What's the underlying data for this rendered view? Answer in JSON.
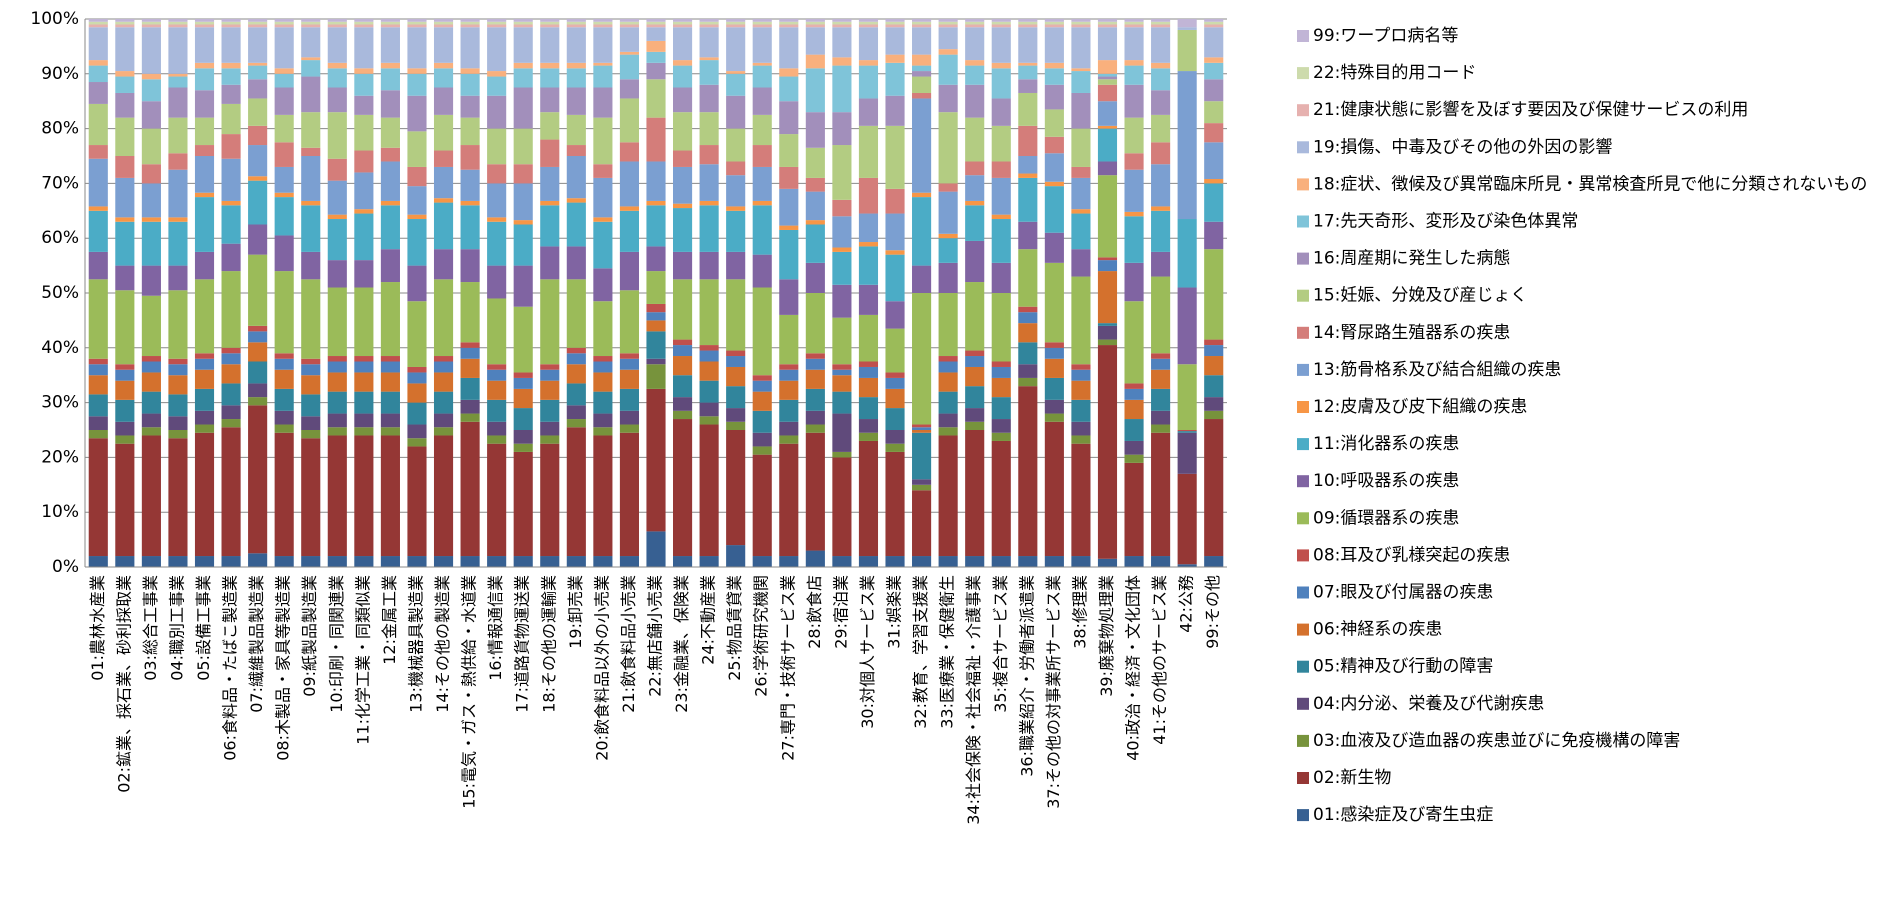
{
  "chart_data": {
    "type": "stacked_bar",
    "categories": [
      "01:農林水産業",
      "02:鉱業、採石業、砂利採取業",
      "03:総合工事業",
      "04:職別工事業",
      "05:設備工事業",
      "06:食料品・たばこ製造業",
      "07:繊維製品製造業",
      "08:木製品・家具等製造業",
      "09:紙製品製造業",
      "10:印刷・同関連業",
      "11:化学工業・同類似業",
      "12:金属工業",
      "13:機械器具製造業",
      "14:その他の製造業",
      "15:電気・ガス・熱供給・水道業",
      "16:情報通信業",
      "17:道路貨物運送業",
      "18:その他の運輸業",
      "19:卸売業",
      "20:飲食料品以外の小売業",
      "21:飲食料品小売業",
      "22:無店舗小売業",
      "23:金融業、保険業",
      "24:不動産業",
      "25:物品賃貸業",
      "26:学術研究機関",
      "27:専門・技術サービス業",
      "28:飲食店",
      "29:宿泊業",
      "30:対個人サービス業",
      "31:娯楽業",
      "32:教育、学習支援業",
      "33:医療業・保健衛生",
      "34:社会保険・社会福祉・介護事業",
      "35:複合サービス業",
      "36:職業紹介・労働者派遣業",
      "37:その他の対事業所サービス業",
      "38:修理業",
      "39:廃棄物処理業",
      "40:政治・経済・文化団体",
      "41:その他のサービス業",
      "42:公務",
      "99:その他"
    ],
    "ylim": [
      0,
      100
    ],
    "yticks": [
      {
        "value": 0,
        "label": "0%"
      },
      {
        "value": 10,
        "label": "10%"
      },
      {
        "value": 20,
        "label": "20%"
      },
      {
        "value": 30,
        "label": "30%"
      },
      {
        "value": 40,
        "label": "40%"
      },
      {
        "value": 50,
        "label": "50%"
      },
      {
        "value": 60,
        "label": "60%"
      },
      {
        "value": 70,
        "label": "70%"
      },
      {
        "value": 80,
        "label": "80%"
      },
      {
        "value": 90,
        "label": "90%"
      },
      {
        "value": 100,
        "label": "100%"
      }
    ],
    "grid": true,
    "legend": "right",
    "series": [
      {
        "name": "01:感染症及び寄生虫症",
        "color": "#376092",
        "values": [
          2,
          2,
          2,
          2,
          2,
          2,
          2.5,
          2,
          2,
          2,
          2,
          2,
          2,
          2,
          2,
          2,
          2,
          2,
          2,
          2,
          2,
          6.5,
          2,
          2,
          4,
          2,
          2,
          3,
          2,
          2,
          2,
          2,
          2,
          2,
          2,
          2,
          2,
          2,
          1.5,
          2,
          2,
          0.5,
          2
        ]
      },
      {
        "name": "02:新生物",
        "color": "#953735",
        "values": [
          21.5,
          20.5,
          22,
          21.5,
          22.5,
          23.5,
          27,
          22.5,
          21.5,
          22,
          22,
          22,
          20,
          22,
          24.5,
          20.5,
          19,
          20.5,
          23.5,
          22,
          22.5,
          26,
          25,
          24,
          21,
          18.5,
          20.5,
          21.5,
          18,
          21,
          19,
          12,
          22,
          23,
          21,
          31,
          24.5,
          20.5,
          39,
          17,
          22.5,
          16.5,
          25
        ]
      },
      {
        "name": "03:血液及び造血器の疾患並びに免疫機構の障害",
        "color": "#77933c",
        "values": [
          1.5,
          1.5,
          1.5,
          1.5,
          1.5,
          1.5,
          1.5,
          1.5,
          1.5,
          1.5,
          1.5,
          1.5,
          1.5,
          1.5,
          1.5,
          1.5,
          1.5,
          1.5,
          1.5,
          1.5,
          1.5,
          4.5,
          1.5,
          1.5,
          1.5,
          1.5,
          1.5,
          1.5,
          1,
          1.5,
          1.5,
          1,
          1.5,
          1.5,
          1.5,
          1.5,
          1.5,
          1.5,
          1,
          1.5,
          1.5,
          0,
          1.5
        ]
      },
      {
        "name": "04:内分泌、栄養及び代謝疾患",
        "color": "#604a7b",
        "values": [
          2.5,
          2.5,
          2.5,
          2.5,
          2.5,
          2.5,
          2.5,
          2.5,
          2.5,
          2.5,
          2.5,
          2.5,
          2.5,
          2.5,
          2.5,
          2.5,
          2.5,
          2.5,
          2.5,
          2.5,
          2.5,
          1,
          2.5,
          2.5,
          2.5,
          2.5,
          2.5,
          2.5,
          7,
          2.5,
          2.5,
          1,
          2.5,
          2.5,
          2.5,
          2.5,
          2.5,
          2.5,
          2.5,
          2.5,
          2.5,
          7.5,
          2.5
        ]
      },
      {
        "name": "05:精神及び行動の障害",
        "color": "#31859c",
        "values": [
          4,
          4,
          4,
          4,
          4,
          4,
          4,
          4,
          4,
          4,
          4,
          4,
          4,
          4,
          4,
          4,
          4,
          4,
          4,
          4,
          4,
          5,
          4,
          4,
          4,
          4,
          4,
          4,
          4,
          4,
          4,
          8.5,
          4,
          4,
          4,
          4,
          4,
          4,
          0.5,
          4,
          4,
          0.3,
          4
        ]
      },
      {
        "name": "06:神経系の疾患",
        "color": "#d4712d",
        "values": [
          3.5,
          3.5,
          3.5,
          3.5,
          3.5,
          3.5,
          3.5,
          3.5,
          3.5,
          3.5,
          3.5,
          3.5,
          3.5,
          3.5,
          3.5,
          3.5,
          3.5,
          3.5,
          3.5,
          3.5,
          3.5,
          2,
          3.5,
          3.5,
          3.5,
          3.5,
          3.5,
          3.5,
          3,
          3.5,
          3.5,
          0.5,
          3.5,
          3.5,
          3.5,
          3.5,
          3.5,
          3.5,
          9.5,
          3.5,
          3.5,
          0,
          3.5
        ]
      },
      {
        "name": "07:眼及び付属器の疾患",
        "color": "#4f81bd",
        "values": [
          2,
          2,
          2,
          2,
          2,
          2,
          2,
          2,
          2,
          2,
          2,
          2,
          2,
          2,
          2,
          2,
          2,
          2,
          2,
          2,
          2,
          1.5,
          2,
          2,
          2,
          2,
          2,
          2,
          1,
          2,
          2,
          0.5,
          2,
          2,
          2,
          2,
          2,
          2,
          2,
          2,
          2,
          0,
          2
        ]
      },
      {
        "name": "08:耳及び乳様突起の疾患",
        "color": "#c0504d",
        "values": [
          1,
          1,
          1,
          1,
          1,
          1,
          1,
          1,
          1,
          1,
          1,
          1,
          1,
          1,
          1,
          1,
          1,
          1,
          1,
          1,
          1,
          1.5,
          1,
          1,
          1,
          1,
          1,
          1,
          1,
          1,
          1,
          0.5,
          1,
          1,
          1,
          1,
          1,
          1,
          0.5,
          1,
          1,
          0.2,
          1
        ]
      },
      {
        "name": "09:循環器系の疾患",
        "color": "#9bbb59",
        "values": [
          14.5,
          13.5,
          11,
          12.5,
          13.5,
          14,
          13,
          15,
          14.5,
          12.5,
          12.5,
          13.5,
          12,
          14,
          11,
          12,
          12,
          15.5,
          12.5,
          10,
          11.5,
          6,
          11,
          12,
          13,
          16,
          9,
          11,
          8.5,
          8.5,
          8,
          24,
          11.5,
          12.5,
          12.5,
          10.5,
          14.5,
          16,
          15,
          15,
          14,
          12,
          16.5
        ]
      },
      {
        "name": "10:呼吸器系の疾患",
        "color": "#8064a2",
        "values": [
          5,
          4.5,
          5.5,
          4.5,
          5,
          5,
          5.5,
          6.5,
          5,
          5,
          5,
          6,
          6.5,
          5.5,
          6,
          6,
          7.5,
          6,
          6,
          6,
          7,
          4.5,
          5,
          5,
          5,
          6,
          6.5,
          5.5,
          6,
          5.5,
          5,
          5,
          5.5,
          7.5,
          5.5,
          5,
          5.5,
          5,
          2.5,
          7,
          4.5,
          14,
          5
        ]
      },
      {
        "name": "11:消化器系の疾患",
        "color": "#4bacc6",
        "values": [
          7.5,
          8,
          8,
          8,
          10,
          7,
          8,
          7,
          8.5,
          7.5,
          8.5,
          8,
          8.5,
          8.5,
          8,
          8,
          7.5,
          7.5,
          8,
          8.5,
          7.5,
          7.5,
          8,
          8.5,
          7.5,
          9,
          9,
          7,
          6,
          7,
          8.5,
          12.5,
          4.5,
          6.5,
          8,
          8,
          8.5,
          6.5,
          6,
          8.5,
          7.5,
          12.5,
          7
        ]
      },
      {
        "name": "12:皮膚及び皮下組織の疾患",
        "color": "#f79646",
        "values": [
          0.8,
          0.8,
          0.8,
          0.8,
          0.8,
          0.8,
          0.8,
          0.8,
          0.8,
          0.8,
          0.8,
          0.8,
          0.8,
          0.8,
          0.8,
          0.8,
          0.8,
          0.8,
          0.8,
          0.8,
          0.8,
          0.8,
          0.8,
          0.8,
          0.8,
          0.8,
          0.8,
          0.8,
          0.8,
          0.8,
          0.8,
          0.8,
          0.8,
          0.8,
          0.8,
          0.8,
          0.8,
          0.8,
          0.5,
          0.8,
          0.8,
          0,
          0.8
        ]
      },
      {
        "name": "13:筋骨格系及び結合組織の疾患",
        "color": "#7b9fd1",
        "values": [
          8.7,
          7.2,
          6.2,
          8.7,
          6.7,
          7.7,
          5.7,
          4.7,
          8.2,
          6.2,
          6.7,
          7.2,
          5.2,
          5.7,
          5.7,
          6.2,
          6.7,
          6.2,
          7.7,
          7.2,
          8.2,
          7.2,
          6.7,
          6.7,
          5.7,
          6.2,
          6.7,
          5.2,
          5.7,
          5.2,
          6.7,
          17.2,
          7.7,
          4.7,
          6.7,
          3.2,
          5.2,
          5.7,
          4.5,
          7.7,
          7.7,
          27,
          6.7
        ]
      },
      {
        "name": "14:腎尿路生殖器系の疾患",
        "color": "#d47d7a",
        "values": [
          2.5,
          4,
          3.5,
          3,
          2,
          4.5,
          3.5,
          4.5,
          1.5,
          4,
          4,
          2.5,
          3.5,
          3,
          4.5,
          3.5,
          3.5,
          5,
          2,
          2.5,
          3.5,
          8,
          3,
          3.5,
          2.5,
          4,
          4,
          2.5,
          3,
          6.5,
          4.5,
          1,
          1.5,
          2.5,
          3,
          5.5,
          3,
          2,
          3,
          3,
          4,
          0,
          3.5
        ]
      },
      {
        "name": "15:妊娠、分娩及び産じょく",
        "color": "#b3cc82",
        "values": [
          7.5,
          7,
          6.5,
          6.5,
          5,
          5.5,
          5,
          5,
          6.5,
          8.5,
          6.5,
          5.5,
          6.5,
          6.5,
          5,
          6.5,
          6.5,
          5,
          5.5,
          8.5,
          8,
          7,
          7,
          6,
          6,
          5.5,
          6,
          5.5,
          10,
          9.5,
          11.5,
          3,
          13,
          8,
          6.5,
          6,
          5,
          7,
          1,
          6.5,
          5,
          7.5,
          4
        ]
      },
      {
        "name": "16:周産期に発生した病態",
        "color": "#a28fbb",
        "values": [
          4,
          4.5,
          5,
          5.5,
          5,
          3.5,
          3.5,
          5,
          6.5,
          4.5,
          3.5,
          5,
          6.5,
          5,
          4,
          6,
          7.5,
          4.5,
          5,
          5.5,
          3.5,
          3,
          4.5,
          5,
          6,
          5,
          6,
          6.5,
          6,
          5,
          5.5,
          1,
          5,
          6,
          5,
          2.5,
          4.5,
          6.5,
          0.5,
          6,
          4.5,
          0,
          4
        ]
      },
      {
        "name": "17:先天奇形、変形及び染色体異常",
        "color": "#7fc4d9",
        "values": [
          3,
          3,
          4,
          2,
          4,
          3,
          2.5,
          2.5,
          3,
          3.5,
          4,
          4,
          4,
          3.5,
          4,
          3.5,
          3.5,
          3.5,
          3.5,
          4,
          4.5,
          2,
          4,
          4.5,
          4,
          4,
          4.5,
          8,
          8.5,
          6,
          6,
          1,
          5.5,
          3.5,
          5.5,
          2.5,
          3,
          4,
          0.5,
          3.5,
          4,
          0,
          3
        ]
      },
      {
        "name": "18:症状、徴候及び異常臨床所見・異常検査所見で他に分類されないもの",
        "color": "#f9b07d",
        "values": [
          1,
          1,
          1,
          0.5,
          1,
          1,
          0.5,
          1,
          0.5,
          1,
          1,
          1,
          1,
          1,
          1,
          1,
          1,
          1,
          1,
          0.5,
          0.5,
          2,
          1,
          0.5,
          0.5,
          0.5,
          1.5,
          2.5,
          1.5,
          1,
          1.5,
          2,
          1,
          1,
          1,
          0.5,
          1,
          0.5,
          2.5,
          1,
          1,
          0,
          1
        ]
      },
      {
        "name": "19:損傷、中毒及びその他の外因の影響",
        "color": "#a9b9dc",
        "values": [
          6,
          8,
          8.5,
          8.5,
          6.5,
          6.5,
          6.5,
          7.5,
          5.5,
          6.5,
          7.5,
          6.5,
          7.5,
          6.5,
          7.5,
          8,
          6.5,
          6.5,
          6.5,
          6.5,
          4.5,
          2.5,
          6,
          5.5,
          8,
          6.5,
          7.5,
          5,
          5.5,
          6,
          5,
          5,
          4,
          6,
          6.5,
          6.5,
          6.5,
          7.5,
          6,
          6,
          6.5,
          0.5,
          5.5
        ]
      },
      {
        "name": "21:健康状態に影響を及ぼす要因及び保健サービスの利用",
        "color": "#e6b1af",
        "values": [
          0.5,
          0.5,
          0.5,
          0.5,
          0.5,
          0.5,
          0.5,
          0.5,
          0.5,
          0.5,
          0.5,
          0.5,
          0.5,
          0.5,
          0.5,
          0.5,
          0.5,
          0.5,
          0.5,
          0.5,
          0.5,
          0.5,
          0.5,
          0.5,
          0.5,
          0.5,
          0.5,
          0.5,
          0.5,
          0.5,
          0.5,
          0.5,
          0.5,
          0.5,
          0.5,
          0.5,
          0.5,
          0.5,
          0.5,
          0.5,
          0.5,
          0,
          0.5
        ]
      },
      {
        "name": "22:特殊目的用コード",
        "color": "#cddbac",
        "values": [
          0.5,
          0.5,
          0.5,
          0.5,
          0.5,
          0.5,
          0.5,
          0.5,
          0.5,
          0.5,
          0.5,
          0.5,
          0.5,
          0.5,
          0.5,
          0.5,
          0.5,
          0.5,
          0.5,
          0.5,
          0.5,
          0.5,
          0.5,
          0.5,
          0.5,
          0.5,
          0.5,
          0.5,
          0.5,
          0.5,
          0.5,
          0.5,
          0.5,
          0.5,
          0.5,
          0.5,
          0.5,
          0.5,
          0.5,
          0.5,
          0.5,
          0,
          0.5
        ]
      },
      {
        "name": "99:ワープロ病名等",
        "color": "#c1b5d6",
        "values": [
          0.5,
          0.5,
          0.5,
          0.5,
          0.5,
          0.5,
          0.5,
          0.5,
          0.5,
          0.5,
          0.5,
          0.5,
          0.5,
          0.5,
          0.5,
          0.5,
          0.5,
          0.5,
          0.5,
          0.5,
          0.5,
          0.5,
          0.5,
          0.5,
          0.5,
          0.5,
          0.5,
          0.5,
          0.5,
          0.5,
          0.5,
          0.5,
          0.5,
          0.5,
          0.5,
          0.5,
          0.5,
          0.5,
          0.5,
          0.5,
          0.5,
          1.5,
          0.5
        ]
      }
    ]
  }
}
